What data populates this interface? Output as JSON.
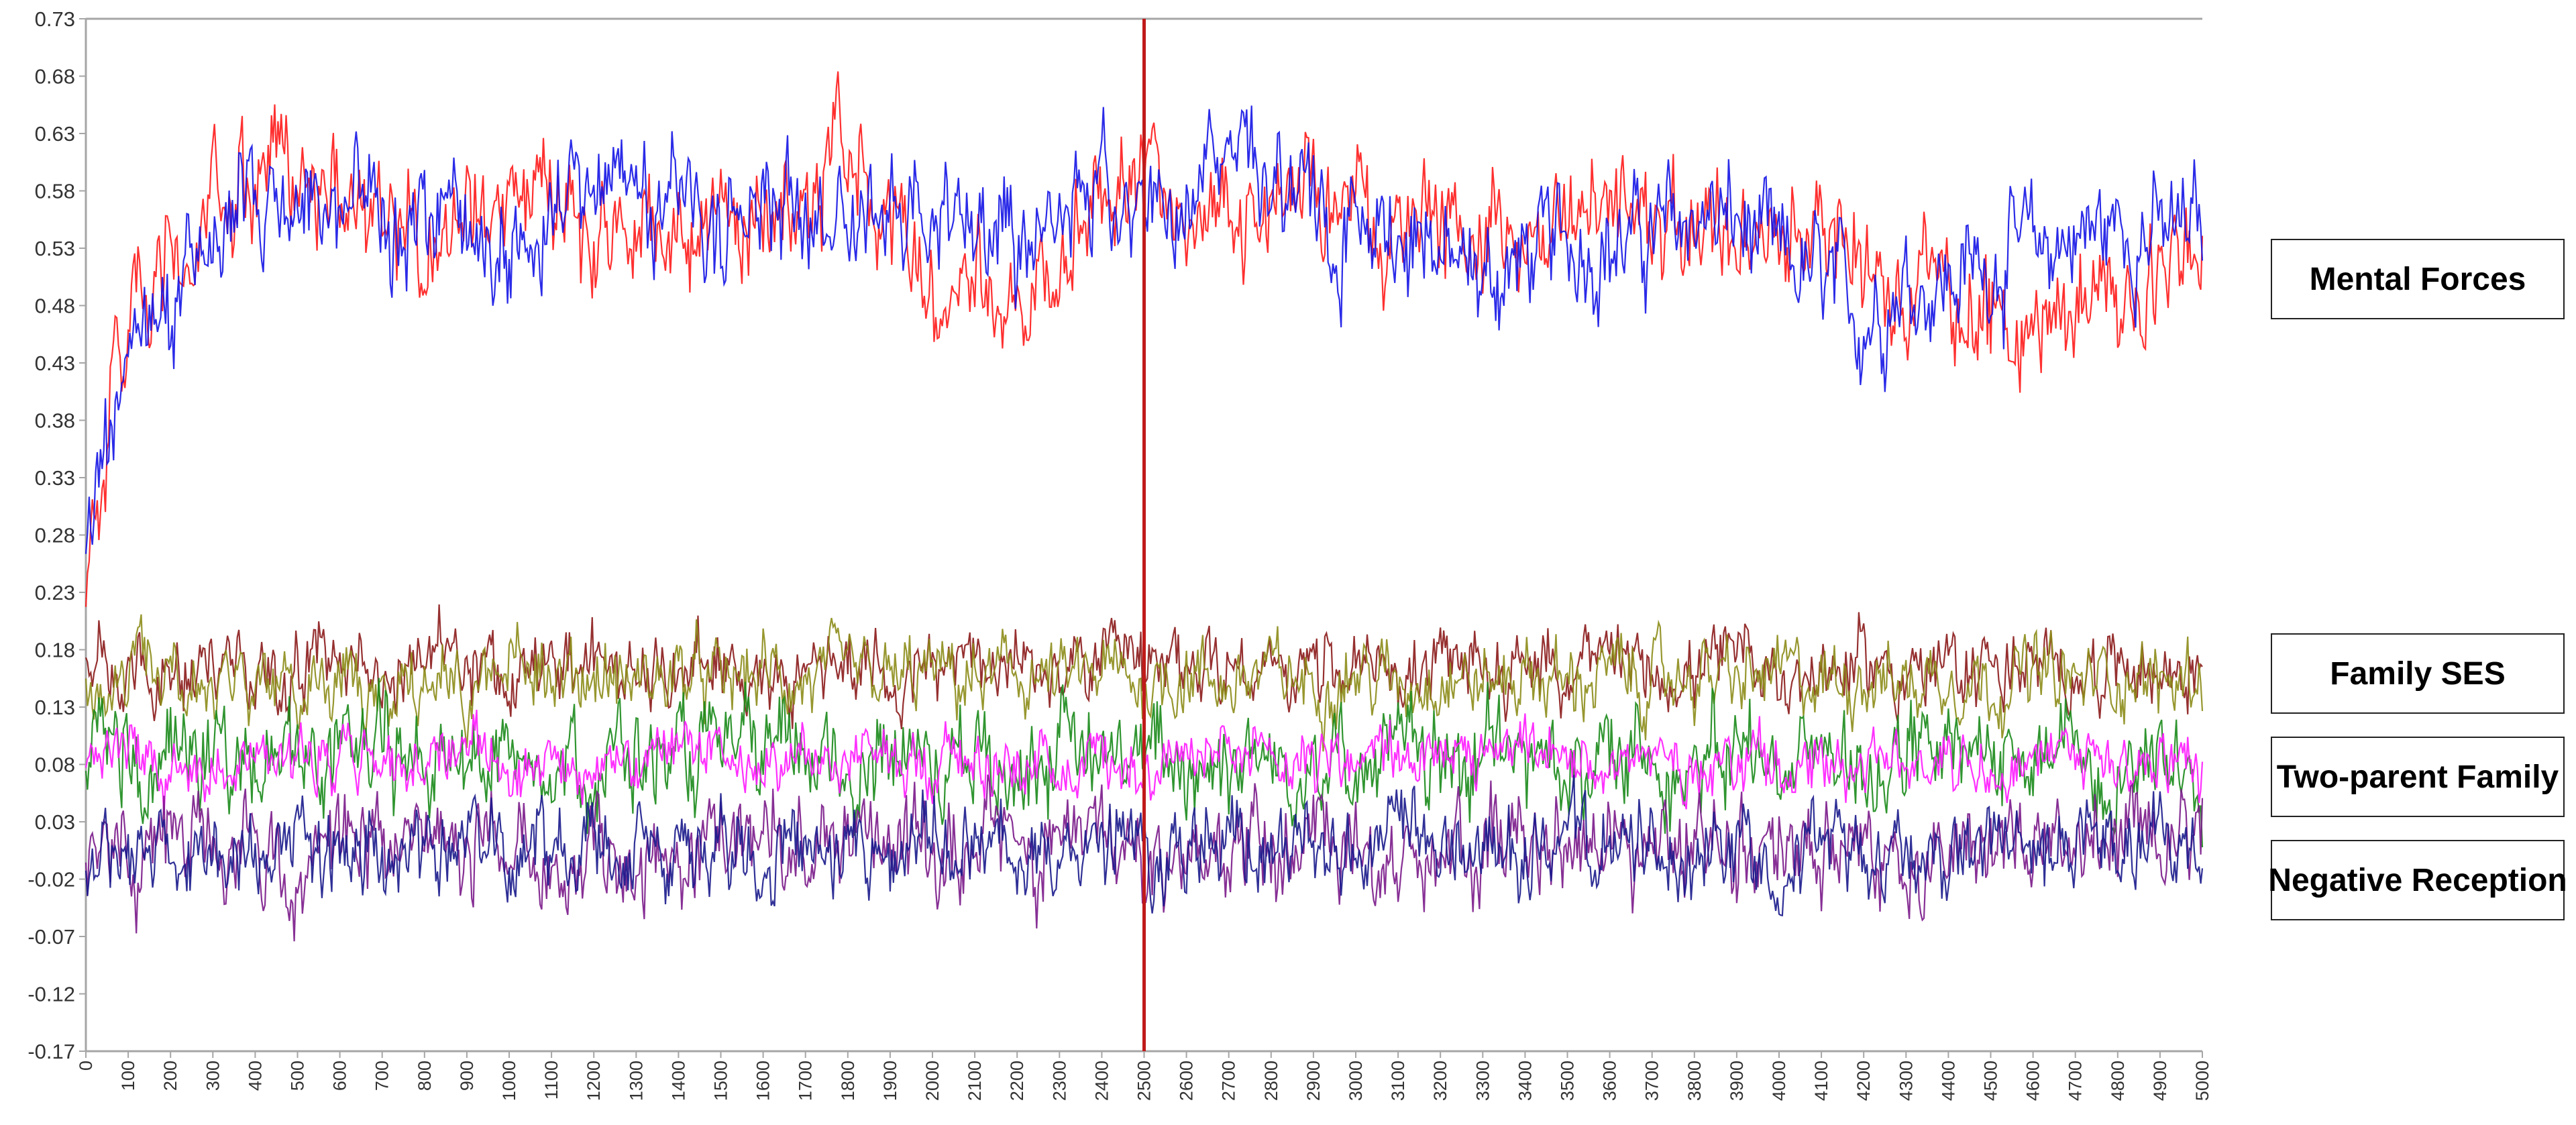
{
  "chart_data": {
    "type": "line",
    "title": "",
    "xlabel": "",
    "ylabel": "",
    "x_range": [
      0,
      5000
    ],
    "ylim": [
      -0.17,
      0.73
    ],
    "y_ticks": [
      "0.73",
      "0.68",
      "0.63",
      "0.58",
      "0.53",
      "0.48",
      "0.43",
      "0.38",
      "0.33",
      "0.28",
      "0.23",
      "0.18",
      "0.13",
      "0.08",
      "0.03",
      "-0.02",
      "-0.07",
      "-0.12",
      "-0.17"
    ],
    "x_ticks": [
      "0",
      "100",
      "200",
      "300",
      "400",
      "500",
      "600",
      "700",
      "800",
      "900",
      "1000",
      "1100",
      "1200",
      "1300",
      "1400",
      "1500",
      "1600",
      "1700",
      "1800",
      "1900",
      "2000",
      "2100",
      "2200",
      "2300",
      "2400",
      "2500",
      "2600",
      "2700",
      "2800",
      "2900",
      "3000",
      "3100",
      "3200",
      "3300",
      "3400",
      "3500",
      "3600",
      "3700",
      "3800",
      "3900",
      "4000",
      "4100",
      "4200",
      "4300",
      "4400",
      "4500",
      "4600",
      "4700",
      "4800",
      "4900",
      "5000"
    ],
    "marker_line_x": 2500,
    "grid": false,
    "legend_position": "right",
    "legend_labels": [
      {
        "text": "Mental Forces"
      },
      {
        "text": "Family SES"
      },
      {
        "text": "Two-parent Family"
      },
      {
        "text": "Negative Reception"
      }
    ],
    "series": [
      {
        "color": "#ff1a1a",
        "values": [
          0.26,
          0.46,
          0.5,
          0.55,
          0.59,
          0.6,
          0.57,
          0.56,
          0.55,
          0.56,
          0.58,
          0.57,
          0.55,
          0.54,
          0.55,
          0.56,
          0.55,
          0.57,
          0.62,
          0.57,
          0.48,
          0.52,
          0.47,
          0.52,
          0.58,
          0.6,
          0.58,
          0.56,
          0.57,
          0.58,
          0.56,
          0.54,
          0.54,
          0.55,
          0.54,
          0.55,
          0.57,
          0.56,
          0.55,
          0.54,
          0.53,
          0.55,
          0.52,
          0.5,
          0.48,
          0.46,
          0.46,
          0.48,
          0.5,
          0.51,
          0.52
        ]
      },
      {
        "color": "#1414e6",
        "values": [
          0.26,
          0.44,
          0.48,
          0.55,
          0.58,
          0.57,
          0.58,
          0.56,
          0.56,
          0.54,
          0.52,
          0.55,
          0.59,
          0.58,
          0.55,
          0.52,
          0.56,
          0.57,
          0.55,
          0.55,
          0.56,
          0.54,
          0.52,
          0.56,
          0.58,
          0.55,
          0.58,
          0.62,
          0.6,
          0.55,
          0.55,
          0.56,
          0.52,
          0.5,
          0.52,
          0.54,
          0.53,
          0.54,
          0.56,
          0.55,
          0.52,
          0.5,
          0.47,
          0.5,
          0.5,
          0.52,
          0.53,
          0.54,
          0.55,
          0.54,
          0.55
        ]
      },
      {
        "color": "#8b1a1a",
        "values": [
          0.17,
          0.16,
          0.16,
          0.17,
          0.16,
          0.16,
          0.17,
          0.16,
          0.16,
          0.17,
          0.16,
          0.16,
          0.17,
          0.16,
          0.16,
          0.17,
          0.16,
          0.16,
          0.17,
          0.16,
          0.16,
          0.17,
          0.16,
          0.16,
          0.17,
          0.16,
          0.16,
          0.17,
          0.16,
          0.16,
          0.17,
          0.16,
          0.16,
          0.17,
          0.16,
          0.16,
          0.17,
          0.16,
          0.16,
          0.17,
          0.16,
          0.16,
          0.17,
          0.16,
          0.16,
          0.17,
          0.16,
          0.16,
          0.17,
          0.16,
          0.16
        ]
      },
      {
        "color": "#8c8c1a",
        "values": [
          0.16,
          0.15,
          0.16,
          0.15,
          0.16,
          0.15,
          0.16,
          0.15,
          0.16,
          0.15,
          0.16,
          0.15,
          0.16,
          0.15,
          0.16,
          0.15,
          0.16,
          0.15,
          0.16,
          0.15,
          0.16,
          0.15,
          0.16,
          0.15,
          0.16,
          0.15,
          0.16,
          0.15,
          0.16,
          0.15,
          0.16,
          0.15,
          0.16,
          0.15,
          0.16,
          0.15,
          0.16,
          0.15,
          0.16,
          0.15,
          0.16,
          0.15,
          0.16,
          0.15,
          0.16,
          0.15,
          0.16,
          0.15,
          0.16,
          0.15,
          0.16
        ]
      },
      {
        "color": "#1a8a1a",
        "values": [
          0.08,
          0.09,
          0.08,
          0.09,
          0.08,
          0.09,
          0.08,
          0.09,
          0.08,
          0.09,
          0.08,
          0.09,
          0.08,
          0.09,
          0.08,
          0.09,
          0.08,
          0.09,
          0.08,
          0.09,
          0.08,
          0.09,
          0.08,
          0.09,
          0.08,
          0.09,
          0.08,
          0.09,
          0.08,
          0.09,
          0.08,
          0.09,
          0.08,
          0.09,
          0.08,
          0.09,
          0.08,
          0.09,
          0.08,
          0.09,
          0.08,
          0.09,
          0.08,
          0.09,
          0.08,
          0.09,
          0.08,
          0.09,
          0.08,
          0.09,
          0.08
        ]
      },
      {
        "color": "#ff1aff",
        "values": [
          0.08,
          0.09,
          0.08,
          0.08,
          0.09,
          0.08,
          0.09,
          0.08,
          0.08,
          0.09,
          0.08,
          0.09,
          0.08,
          0.08,
          0.09,
          0.08,
          0.09,
          0.08,
          0.08,
          0.09,
          0.08,
          0.09,
          0.08,
          0.08,
          0.09,
          0.08,
          0.09,
          0.08,
          0.08,
          0.09,
          0.08,
          0.09,
          0.08,
          0.08,
          0.09,
          0.08,
          0.09,
          0.08,
          0.08,
          0.09,
          0.08,
          0.09,
          0.08,
          0.08,
          0.09,
          0.08,
          0.09,
          0.08,
          0.08,
          0.09,
          0.08
        ]
      },
      {
        "color": "#7a1a8a",
        "values": [
          0.01,
          0.0,
          0.01,
          0.0,
          0.01,
          0.0,
          0.01,
          0.0,
          0.01,
          0.0,
          0.01,
          0.0,
          0.01,
          0.0,
          0.01,
          0.0,
          0.01,
          0.0,
          0.01,
          0.0,
          0.01,
          0.0,
          0.01,
          0.0,
          0.01,
          0.0,
          0.01,
          0.0,
          0.01,
          0.0,
          0.01,
          0.0,
          0.01,
          0.0,
          0.01,
          0.0,
          0.01,
          0.0,
          0.01,
          0.0,
          0.01,
          0.0,
          0.01,
          0.0,
          0.01,
          0.0,
          0.01,
          0.0,
          0.01,
          0.0,
          0.01
        ]
      },
      {
        "color": "#1a1a8c",
        "values": [
          0.0,
          0.01,
          0.0,
          0.01,
          0.0,
          0.01,
          0.0,
          0.01,
          0.0,
          0.01,
          0.0,
          0.01,
          0.0,
          0.01,
          0.0,
          0.01,
          0.0,
          0.01,
          0.0,
          0.01,
          0.0,
          0.01,
          0.0,
          0.01,
          0.0,
          0.01,
          0.0,
          0.01,
          0.0,
          0.01,
          0.0,
          0.01,
          0.0,
          0.01,
          0.0,
          0.01,
          0.0,
          0.01,
          0.0,
          0.01,
          0.0,
          0.01,
          0.0,
          0.01,
          0.0,
          0.01,
          0.0,
          0.01,
          0.0,
          0.01,
          0.0
        ]
      }
    ]
  }
}
